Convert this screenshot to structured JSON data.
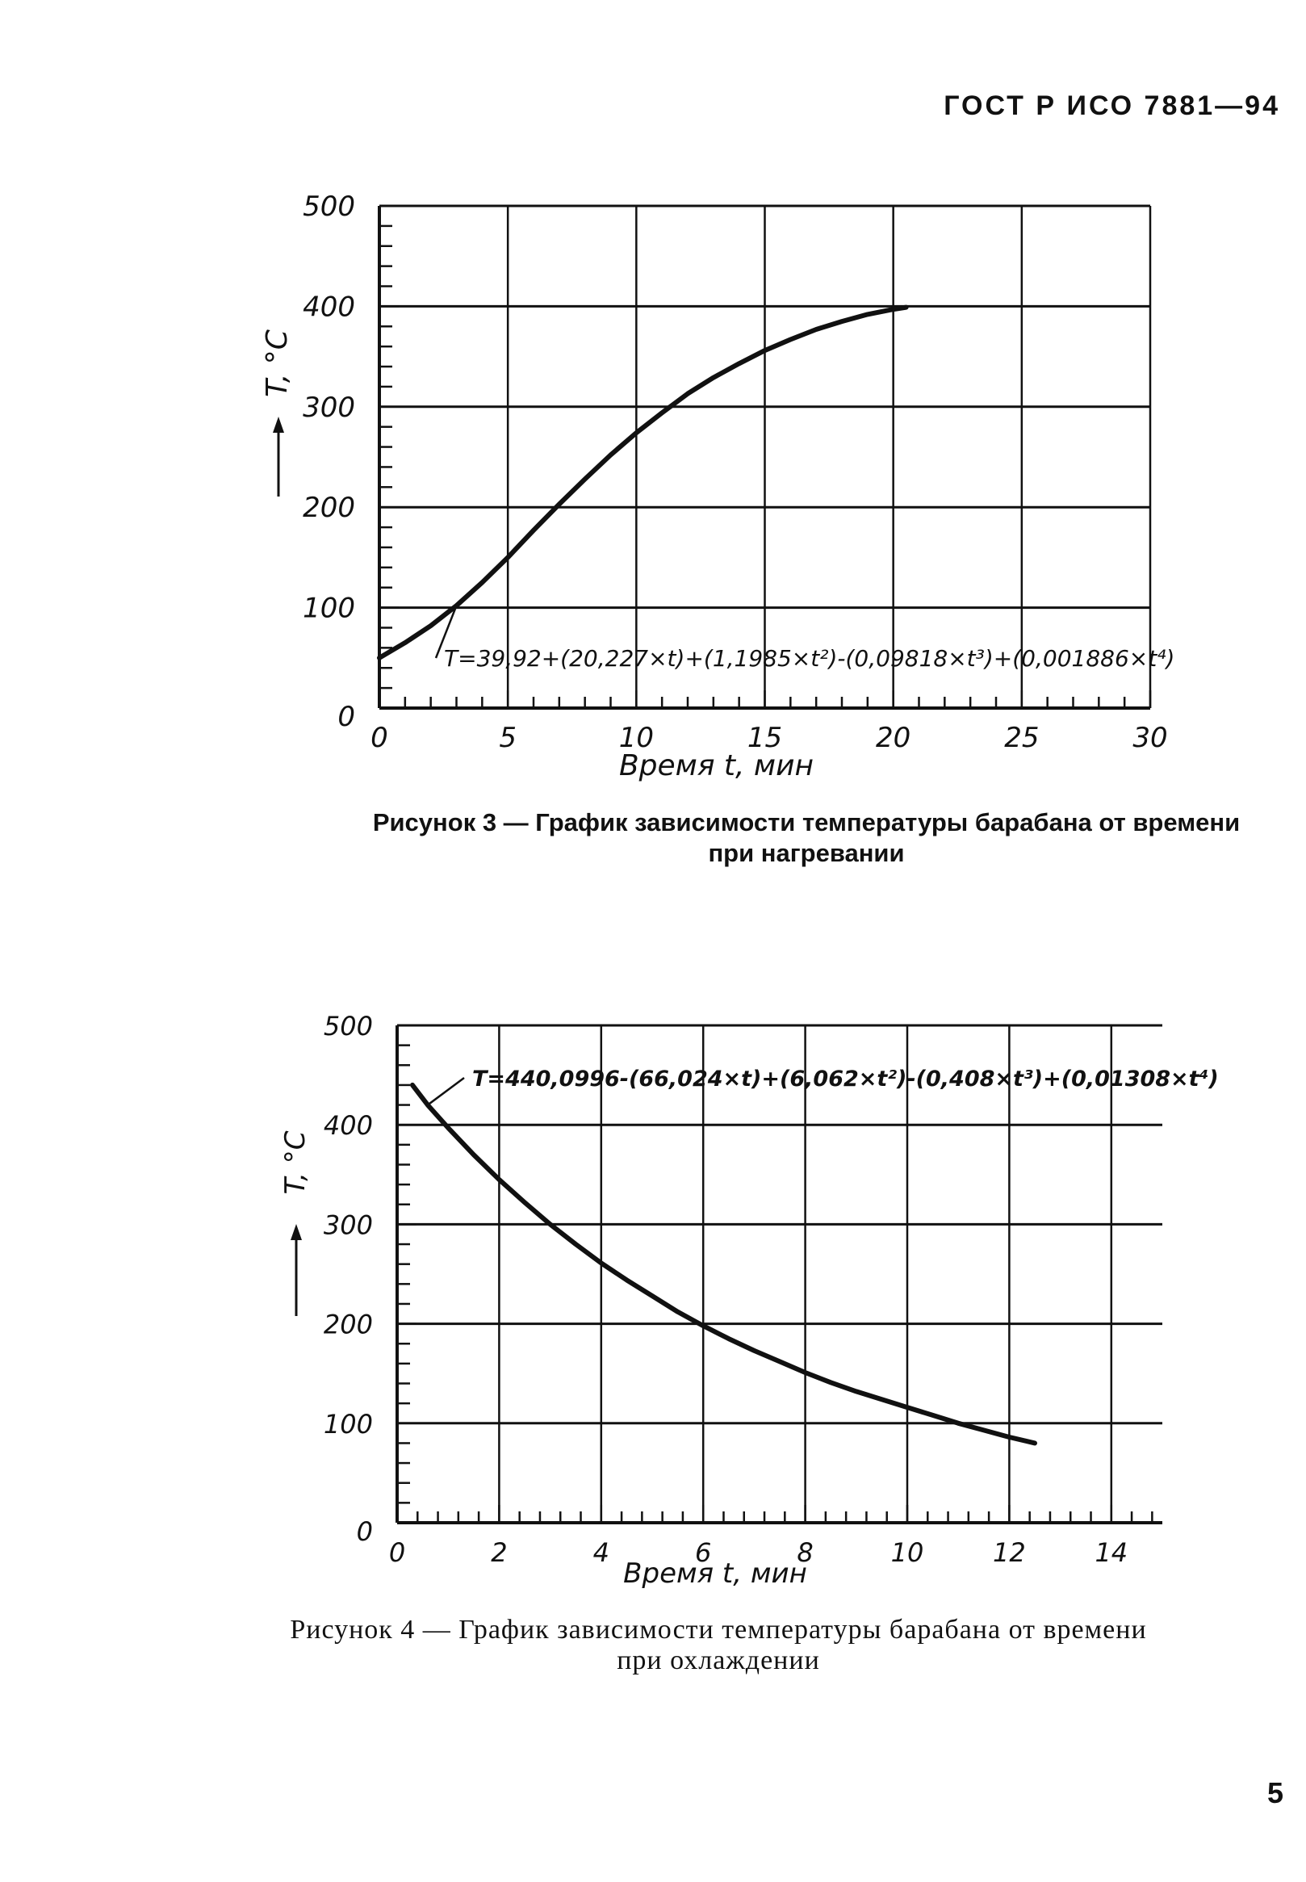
{
  "header": {
    "document_code": "ГОСТ Р ИСО 7881—94"
  },
  "figures": [
    {
      "caption_line1": "Рисунок 3 — График зависимости температуры барабана от времени",
      "caption_line2": "при нагревании"
    },
    {
      "caption_line1": "Рисунок 4 — График зависимости температуры барабана от времени",
      "caption_line2": "при охлаждении"
    }
  ],
  "page_number": "5",
  "colors": {
    "ink": "#111111",
    "paper": "#ffffff"
  },
  "chart_data": [
    {
      "type": "line",
      "title": "",
      "xlabel": "Время t, мин",
      "ylabel": "T, °C",
      "xlim": [
        0,
        30
      ],
      "ylim": [
        0,
        500
      ],
      "x_ticks": [
        "0",
        "5",
        "10",
        "15",
        "20",
        "25",
        "30"
      ],
      "y_ticks": [
        "0",
        "100",
        "200",
        "300",
        "400",
        "500"
      ],
      "grid": true,
      "annotation": "T=39,92+(20,227×t)+(1,1985×t²)-(0,09818×t³)+(0,001886×t⁴)",
      "series": [
        {
          "x": [
            0,
            1,
            2,
            3,
            4,
            5,
            6,
            7,
            8,
            9,
            10,
            11,
            12,
            13,
            14,
            15,
            16,
            17,
            18,
            19,
            20,
            20.5
          ],
          "y": [
            50,
            65,
            82,
            102,
            125,
            150,
            177,
            203,
            228,
            252,
            274,
            294,
            313,
            329,
            343,
            356,
            367,
            377,
            385,
            392,
            397,
            399
          ]
        }
      ]
    },
    {
      "type": "line",
      "title": "",
      "xlabel": "Время t, мин",
      "ylabel": "T, °C",
      "xlim": [
        0,
        15
      ],
      "ylim": [
        0,
        500
      ],
      "x_ticks": [
        "0",
        "2",
        "4",
        "6",
        "8",
        "10",
        "12",
        "14"
      ],
      "y_ticks": [
        "0",
        "100",
        "200",
        "300",
        "400",
        "500"
      ],
      "grid": true,
      "annotation": "T=440,0996-(66,024×t)+(6,062×t²)-(0,408×t³)+(0,01308×t⁴)",
      "series": [
        {
          "x": [
            0.3,
            0.6,
            1,
            1.5,
            2,
            2.5,
            3,
            3.5,
            4,
            4.5,
            5,
            5.5,
            6,
            6.5,
            7,
            7.5,
            8,
            8.5,
            9,
            9.5,
            10,
            10.5,
            11,
            11.5,
            12,
            12.5
          ],
          "y": [
            440,
            420,
            397,
            370,
            345,
            322,
            300,
            280,
            261,
            244,
            228,
            212,
            198,
            185,
            173,
            162,
            151,
            141,
            132,
            124,
            116,
            108,
            100,
            93,
            86,
            80
          ]
        }
      ]
    }
  ]
}
